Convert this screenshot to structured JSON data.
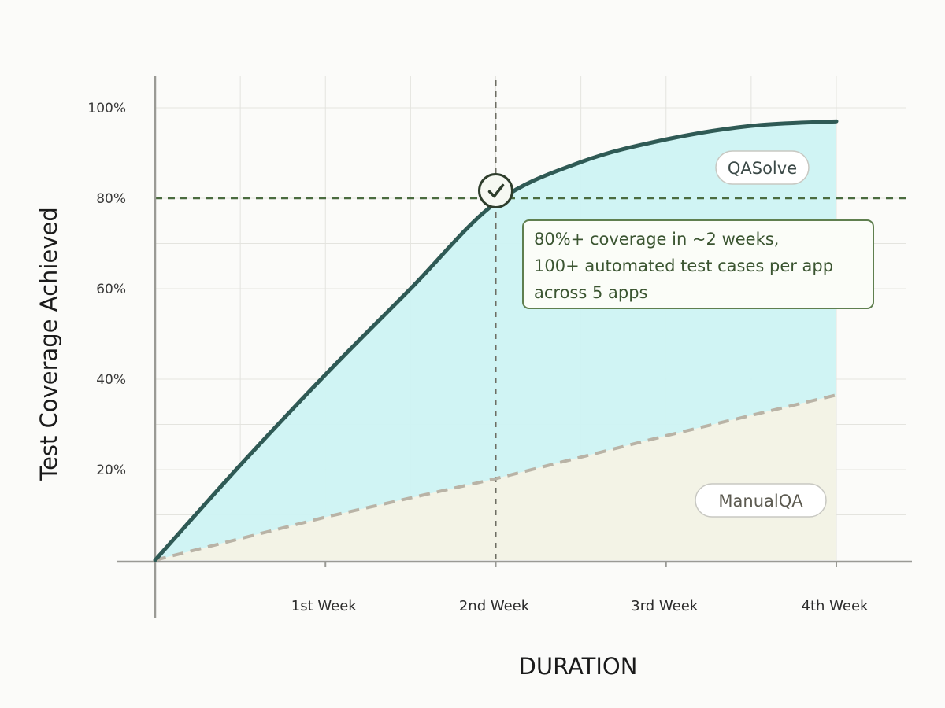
{
  "chart_data": {
    "type": "area",
    "xlabel": "DURATION",
    "ylabel": "Test Coverage Achieved",
    "ylim": [
      0,
      100
    ],
    "xlim": [
      0,
      4
    ],
    "yticks": [
      "20%",
      "40%",
      "60%",
      "80%",
      "100%"
    ],
    "ytick_values": [
      20,
      40,
      60,
      80,
      100
    ],
    "xticks": [
      "1st Week",
      "2nd Week",
      "3rd Week",
      "4th Week"
    ],
    "xtick_values": [
      1,
      2,
      3,
      4
    ],
    "grid": true,
    "series": [
      {
        "name": "QASolve",
        "style": "solid",
        "color": "#2f5a55",
        "fill": "#cdf3f3",
        "x": [
          0,
          0.5,
          1,
          1.5,
          2,
          2.5,
          3,
          3.5,
          4
        ],
        "values": [
          0,
          21,
          41,
          60,
          79,
          88,
          93,
          96,
          97
        ]
      },
      {
        "name": "ManualQA",
        "style": "dashed",
        "color": "#b9b3a6",
        "fill": "#f3f3e6",
        "x": [
          0,
          1,
          2,
          3,
          4
        ],
        "values": [
          0,
          9.5,
          18,
          27.5,
          36.5
        ]
      }
    ],
    "reference_lines": {
      "y": 80,
      "x": 2,
      "color": "#4a6b3f"
    },
    "milestone_marker": {
      "x": 2,
      "y": 82,
      "icon": "check-icon"
    },
    "annotation": {
      "lines": [
        "80%+ coverage in ~2 weeks,",
        "100+ automated test cases per app",
        "across 5 apps"
      ]
    }
  }
}
